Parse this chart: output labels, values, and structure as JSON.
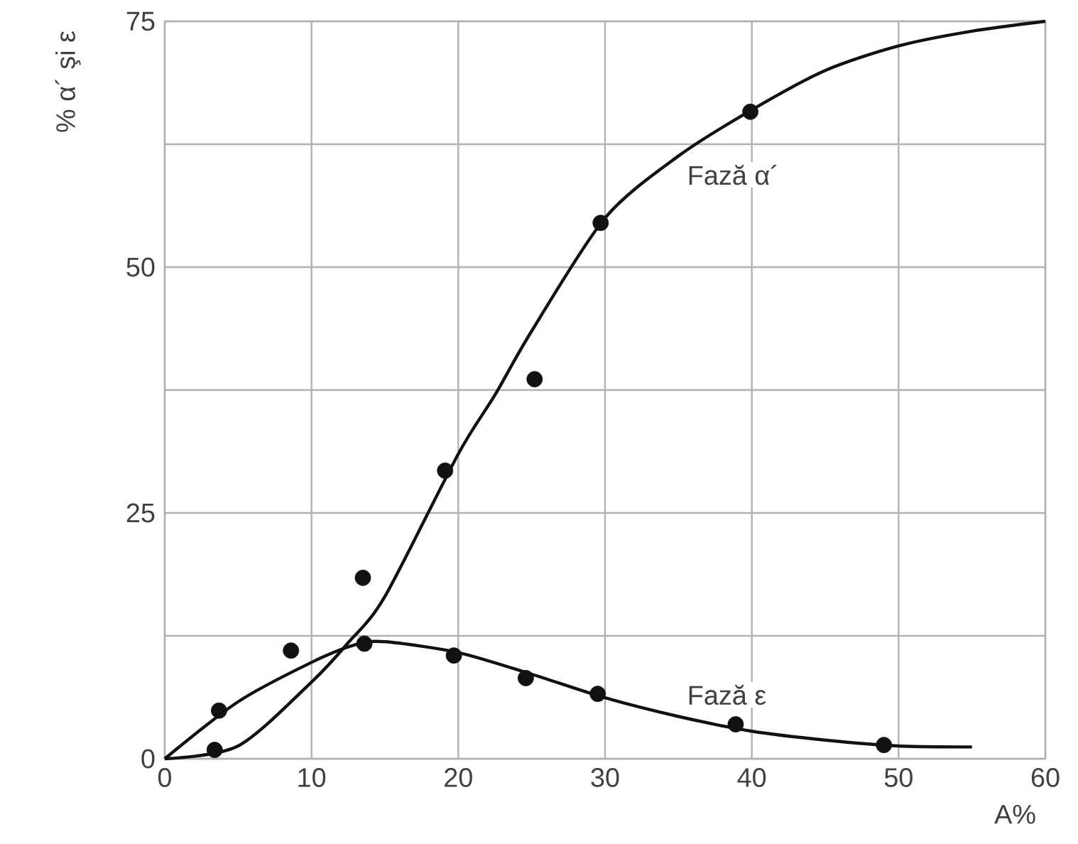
{
  "chart_data": {
    "type": "line",
    "xlabel": "A%",
    "ylabel": "% α´ şi ε",
    "xlim": [
      0,
      60
    ],
    "ylim": [
      0,
      75
    ],
    "xticks": [
      0,
      10,
      20,
      30,
      40,
      50,
      60
    ],
    "yticks": [
      0,
      {
        "value": 12.5,
        "label": null
      },
      25,
      {
        "value": 37.5,
        "label": null
      },
      50,
      {
        "value": 62.5,
        "label": null
      },
      75
    ],
    "grid": true,
    "series": [
      {
        "name": "Fază α´",
        "color": "#111111",
        "marker": "none",
        "x": [
          0,
          5,
          10,
          12.5,
          15,
          20,
          22.5,
          25,
          30,
          35,
          40,
          45,
          50,
          55,
          60
        ],
        "values": [
          0,
          1.3,
          7.8,
          11.8,
          16.5,
          31,
          37,
          43.5,
          55,
          61.3,
          66,
          70,
          72.5,
          74,
          75
        ]
      },
      {
        "type": "scatter",
        "color": "#111111",
        "marker": "circle",
        "x": [
          3.4,
          13.5,
          19.1,
          25.2,
          29.7,
          39.9
        ],
        "values": [
          0.9,
          18.4,
          29.3,
          38.6,
          54.5,
          65.8
        ]
      },
      {
        "name": "Fază ε",
        "color": "#111111",
        "marker": "none",
        "x": [
          0,
          5,
          10,
          13,
          15,
          20,
          25,
          30,
          35,
          40,
          45,
          50,
          55
        ],
        "values": [
          0,
          5.8,
          9.8,
          11.6,
          11.9,
          10.8,
          8.6,
          6.2,
          4.3,
          2.8,
          1.9,
          1.3,
          1.2
        ]
      },
      {
        "type": "scatter",
        "color": "#111111",
        "marker": "circle",
        "x": [
          3.7,
          8.6,
          13.6,
          19.7,
          24.6,
          29.5,
          38.9,
          49.0
        ],
        "values": [
          4.9,
          11.0,
          11.7,
          10.5,
          8.2,
          6.6,
          3.5,
          1.4
        ]
      }
    ]
  }
}
